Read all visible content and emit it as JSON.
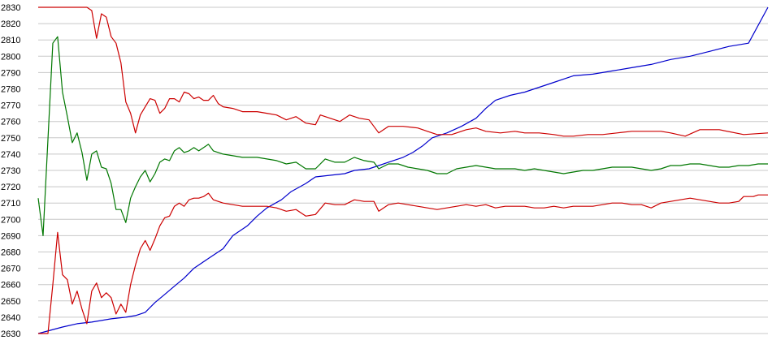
{
  "chart_data": {
    "type": "line",
    "title": "",
    "xlabel": "",
    "ylabel": "",
    "ylim": [
      2630,
      2830
    ],
    "yticks": [
      2630,
      2640,
      2650,
      2660,
      2670,
      2680,
      2690,
      2700,
      2710,
      2720,
      2730,
      2740,
      2750,
      2760,
      2770,
      2780,
      2790,
      2800,
      2810,
      2820,
      2830
    ],
    "grid": true,
    "legend": "none",
    "xlim": [
      0,
      150
    ],
    "series": [
      {
        "color": "#0000cc",
        "points": [
          [
            0,
            2630
          ],
          [
            5,
            2634
          ],
          [
            8,
            2636
          ],
          [
            11,
            2637
          ],
          [
            15,
            2639
          ],
          [
            18,
            2640
          ],
          [
            20,
            2641
          ],
          [
            22,
            2643
          ],
          [
            24,
            2649
          ],
          [
            26,
            2654
          ],
          [
            28,
            2659
          ],
          [
            30,
            2664
          ],
          [
            32,
            2670
          ],
          [
            35,
            2676
          ],
          [
            38,
            2682
          ],
          [
            40,
            2690
          ],
          [
            43,
            2696
          ],
          [
            45,
            2702
          ],
          [
            47,
            2707
          ],
          [
            50,
            2712
          ],
          [
            52,
            2717
          ],
          [
            55,
            2722
          ],
          [
            57,
            2726
          ],
          [
            60,
            2727
          ],
          [
            63,
            2728
          ],
          [
            65,
            2730
          ],
          [
            68,
            2731
          ],
          [
            70,
            2733
          ],
          [
            72,
            2735
          ],
          [
            75,
            2738
          ],
          [
            77,
            2741
          ],
          [
            79,
            2745
          ],
          [
            81,
            2750
          ],
          [
            84,
            2753
          ],
          [
            87,
            2757
          ],
          [
            90,
            2762
          ],
          [
            92,
            2768
          ],
          [
            94,
            2773
          ],
          [
            97,
            2776
          ],
          [
            100,
            2778
          ],
          [
            103,
            2781
          ],
          [
            106,
            2784
          ],
          [
            108,
            2786
          ],
          [
            110,
            2788
          ],
          [
            114,
            2789
          ],
          [
            118,
            2791
          ],
          [
            122,
            2793
          ],
          [
            126,
            2795
          ],
          [
            130,
            2798
          ],
          [
            134,
            2800
          ],
          [
            138,
            2803
          ],
          [
            142,
            2806
          ],
          [
            146,
            2808
          ],
          [
            150,
            2830
          ]
        ]
      },
      {
        "color": "#cc0000",
        "points": [
          [
            0,
            2830
          ],
          [
            10,
            2830
          ],
          [
            11,
            2828
          ],
          [
            12,
            2811
          ],
          [
            13,
            2826
          ],
          [
            14,
            2824
          ],
          [
            15,
            2812
          ],
          [
            16,
            2808
          ],
          [
            17,
            2796
          ],
          [
            18,
            2772
          ],
          [
            19,
            2765
          ],
          [
            20,
            2753
          ],
          [
            21,
            2764
          ],
          [
            22,
            2769
          ],
          [
            23,
            2774
          ],
          [
            24,
            2773
          ],
          [
            25,
            2765
          ],
          [
            26,
            2768
          ],
          [
            27,
            2774
          ],
          [
            28,
            2774
          ],
          [
            29,
            2772
          ],
          [
            30,
            2778
          ],
          [
            31,
            2777
          ],
          [
            32,
            2774
          ],
          [
            33,
            2775
          ],
          [
            34,
            2773
          ],
          [
            35,
            2773
          ],
          [
            36,
            2776
          ],
          [
            37,
            2771
          ],
          [
            38,
            2769
          ],
          [
            40,
            2768
          ],
          [
            42,
            2766
          ],
          [
            45,
            2766
          ],
          [
            47,
            2765
          ],
          [
            49,
            2764
          ],
          [
            51,
            2761
          ],
          [
            53,
            2763
          ],
          [
            55,
            2759
          ],
          [
            57,
            2758
          ],
          [
            58,
            2764
          ],
          [
            60,
            2762
          ],
          [
            62,
            2760
          ],
          [
            64,
            2764
          ],
          [
            66,
            2762
          ],
          [
            68,
            2761
          ],
          [
            70,
            2753
          ],
          [
            72,
            2757
          ],
          [
            75,
            2757
          ],
          [
            78,
            2756
          ],
          [
            80,
            2754
          ],
          [
            82,
            2752
          ],
          [
            85,
            2752
          ],
          [
            88,
            2755
          ],
          [
            90,
            2756
          ],
          [
            92,
            2754
          ],
          [
            95,
            2753
          ],
          [
            98,
            2754
          ],
          [
            100,
            2753
          ],
          [
            103,
            2753
          ],
          [
            106,
            2752
          ],
          [
            108,
            2751
          ],
          [
            110,
            2751
          ],
          [
            113,
            2752
          ],
          [
            116,
            2752
          ],
          [
            119,
            2753
          ],
          [
            122,
            2754
          ],
          [
            125,
            2754
          ],
          [
            128,
            2754
          ],
          [
            130,
            2753
          ],
          [
            133,
            2751
          ],
          [
            136,
            2755
          ],
          [
            140,
            2755
          ],
          [
            145,
            2752
          ],
          [
            150,
            2753
          ]
        ]
      },
      {
        "color": "#007700",
        "points": [
          [
            0,
            2713
          ],
          [
            1,
            2690
          ],
          [
            3,
            2808
          ],
          [
            4,
            2812
          ],
          [
            5,
            2778
          ],
          [
            6,
            2763
          ],
          [
            7,
            2747
          ],
          [
            8,
            2753
          ],
          [
            9,
            2741
          ],
          [
            10,
            2724
          ],
          [
            11,
            2740
          ],
          [
            12,
            2742
          ],
          [
            13,
            2732
          ],
          [
            14,
            2731
          ],
          [
            15,
            2722
          ],
          [
            16,
            2706
          ],
          [
            17,
            2706
          ],
          [
            18,
            2698
          ],
          [
            19,
            2713
          ],
          [
            20,
            2720
          ],
          [
            21,
            2726
          ],
          [
            22,
            2730
          ],
          [
            23,
            2723
          ],
          [
            24,
            2728
          ],
          [
            25,
            2735
          ],
          [
            26,
            2737
          ],
          [
            27,
            2736
          ],
          [
            28,
            2742
          ],
          [
            29,
            2744
          ],
          [
            30,
            2741
          ],
          [
            31,
            2742
          ],
          [
            32,
            2744
          ],
          [
            33,
            2742
          ],
          [
            34,
            2744
          ],
          [
            35,
            2746
          ],
          [
            36,
            2742
          ],
          [
            37,
            2741
          ],
          [
            38,
            2740
          ],
          [
            40,
            2739
          ],
          [
            42,
            2738
          ],
          [
            45,
            2738
          ],
          [
            47,
            2737
          ],
          [
            49,
            2736
          ],
          [
            51,
            2734
          ],
          [
            53,
            2735
          ],
          [
            55,
            2731
          ],
          [
            57,
            2731
          ],
          [
            59,
            2737
          ],
          [
            61,
            2735
          ],
          [
            63,
            2735
          ],
          [
            65,
            2738
          ],
          [
            67,
            2736
          ],
          [
            69,
            2735
          ],
          [
            70,
            2731
          ],
          [
            72,
            2734
          ],
          [
            74,
            2734
          ],
          [
            76,
            2732
          ],
          [
            78,
            2731
          ],
          [
            80,
            2730
          ],
          [
            82,
            2728
          ],
          [
            84,
            2728
          ],
          [
            86,
            2731
          ],
          [
            88,
            2732
          ],
          [
            90,
            2733
          ],
          [
            92,
            2732
          ],
          [
            94,
            2731
          ],
          [
            96,
            2731
          ],
          [
            98,
            2731
          ],
          [
            100,
            2730
          ],
          [
            102,
            2731
          ],
          [
            104,
            2730
          ],
          [
            106,
            2729
          ],
          [
            108,
            2728
          ],
          [
            110,
            2729
          ],
          [
            112,
            2730
          ],
          [
            114,
            2730
          ],
          [
            116,
            2731
          ],
          [
            118,
            2732
          ],
          [
            120,
            2732
          ],
          [
            122,
            2732
          ],
          [
            124,
            2731
          ],
          [
            126,
            2730
          ],
          [
            128,
            2731
          ],
          [
            130,
            2733
          ],
          [
            132,
            2733
          ],
          [
            134,
            2734
          ],
          [
            136,
            2734
          ],
          [
            138,
            2733
          ],
          [
            140,
            2732
          ],
          [
            142,
            2732
          ],
          [
            144,
            2733
          ],
          [
            146,
            2733
          ],
          [
            148,
            2734
          ],
          [
            150,
            2734
          ]
        ]
      },
      {
        "color": "#cc0000",
        "points": [
          [
            0,
            2630
          ],
          [
            2,
            2630
          ],
          [
            3,
            2660
          ],
          [
            4,
            2692
          ],
          [
            5,
            2666
          ],
          [
            6,
            2663
          ],
          [
            7,
            2648
          ],
          [
            8,
            2656
          ],
          [
            9,
            2645
          ],
          [
            10,
            2636
          ],
          [
            11,
            2656
          ],
          [
            12,
            2661
          ],
          [
            13,
            2652
          ],
          [
            14,
            2655
          ],
          [
            15,
            2652
          ],
          [
            16,
            2642
          ],
          [
            17,
            2648
          ],
          [
            18,
            2643
          ],
          [
            19,
            2660
          ],
          [
            20,
            2672
          ],
          [
            21,
            2682
          ],
          [
            22,
            2687
          ],
          [
            23,
            2681
          ],
          [
            24,
            2688
          ],
          [
            25,
            2696
          ],
          [
            26,
            2701
          ],
          [
            27,
            2702
          ],
          [
            28,
            2708
          ],
          [
            29,
            2710
          ],
          [
            30,
            2708
          ],
          [
            31,
            2712
          ],
          [
            32,
            2713
          ],
          [
            33,
            2713
          ],
          [
            34,
            2714
          ],
          [
            35,
            2716
          ],
          [
            36,
            2712
          ],
          [
            37,
            2711
          ],
          [
            38,
            2710
          ],
          [
            40,
            2709
          ],
          [
            42,
            2708
          ],
          [
            45,
            2708
          ],
          [
            47,
            2708
          ],
          [
            49,
            2707
          ],
          [
            51,
            2705
          ],
          [
            53,
            2706
          ],
          [
            55,
            2702
          ],
          [
            57,
            2703
          ],
          [
            59,
            2710
          ],
          [
            61,
            2709
          ],
          [
            63,
            2709
          ],
          [
            65,
            2712
          ],
          [
            67,
            2711
          ],
          [
            69,
            2711
          ],
          [
            70,
            2705
          ],
          [
            72,
            2709
          ],
          [
            74,
            2710
          ],
          [
            76,
            2709
          ],
          [
            78,
            2708
          ],
          [
            80,
            2707
          ],
          [
            82,
            2706
          ],
          [
            84,
            2707
          ],
          [
            86,
            2708
          ],
          [
            88,
            2709
          ],
          [
            90,
            2708
          ],
          [
            92,
            2709
          ],
          [
            94,
            2707
          ],
          [
            96,
            2708
          ],
          [
            98,
            2708
          ],
          [
            100,
            2708
          ],
          [
            102,
            2707
          ],
          [
            104,
            2707
          ],
          [
            106,
            2708
          ],
          [
            108,
            2707
          ],
          [
            110,
            2708
          ],
          [
            112,
            2708
          ],
          [
            114,
            2708
          ],
          [
            116,
            2709
          ],
          [
            118,
            2710
          ],
          [
            120,
            2710
          ],
          [
            122,
            2709
          ],
          [
            124,
            2709
          ],
          [
            126,
            2707
          ],
          [
            128,
            2710
          ],
          [
            130,
            2711
          ],
          [
            132,
            2712
          ],
          [
            134,
            2713
          ],
          [
            136,
            2712
          ],
          [
            138,
            2711
          ],
          [
            140,
            2710
          ],
          [
            142,
            2710
          ],
          [
            144,
            2711
          ],
          [
            145,
            2714
          ],
          [
            147,
            2714
          ],
          [
            148,
            2715
          ],
          [
            150,
            2715
          ]
        ]
      }
    ]
  }
}
